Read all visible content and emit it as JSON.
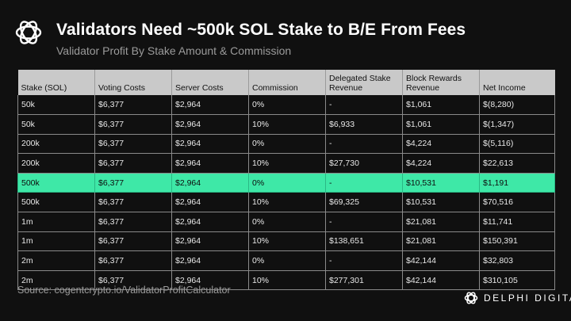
{
  "header": {
    "title": "Validators Need ~500k SOL Stake to B/E From Fees",
    "subtitle": "Validator Profit By Stake Amount & Commission"
  },
  "table": {
    "columns": [
      "Stake (SOL)",
      "Voting Costs",
      "Server Costs",
      "Commission",
      "Delegated Stake Revenue",
      "Block Rewards Revenue",
      "Net Income"
    ],
    "rows": [
      [
        "50k",
        "$6,377",
        "$2,964",
        "0%",
        "-",
        "$1,061",
        "$(8,280)"
      ],
      [
        "50k",
        "$6,377",
        "$2,964",
        "10%",
        "$6,933",
        "$1,061",
        "$(1,347)"
      ],
      [
        "200k",
        "$6,377",
        "$2,964",
        "0%",
        "-",
        "$4,224",
        "$(5,116)"
      ],
      [
        "200k",
        "$6,377",
        "$2,964",
        "10%",
        "$27,730",
        "$4,224",
        "$22,613"
      ],
      [
        "500k",
        "$6,377",
        "$2,964",
        "0%",
        "-",
        "$10,531",
        "$1,191"
      ],
      [
        "500k",
        "$6,377",
        "$2,964",
        "10%",
        "$69,325",
        "$10,531",
        "$70,516"
      ],
      [
        "1m",
        "$6,377",
        "$2,964",
        "0%",
        "-",
        "$21,081",
        "$11,741"
      ],
      [
        "1m",
        "$6,377",
        "$2,964",
        "10%",
        "$138,651",
        "$21,081",
        "$150,391"
      ],
      [
        "2m",
        "$6,377",
        "$2,964",
        "0%",
        "-",
        "$42,144",
        "$32,803"
      ],
      [
        "2m",
        "$6,377",
        "$2,964",
        "10%",
        "$277,301",
        "$42,144",
        "$310,105"
      ]
    ],
    "highlighted_row": 4,
    "highlight_color": "#3ee8a7"
  },
  "footer": {
    "source": "Source: cogentcrypto.io/ValidatorProfitCalculator",
    "brand": "DELPHI DIGITAL"
  },
  "icons": {
    "logo": "delphi-logo-icon"
  }
}
